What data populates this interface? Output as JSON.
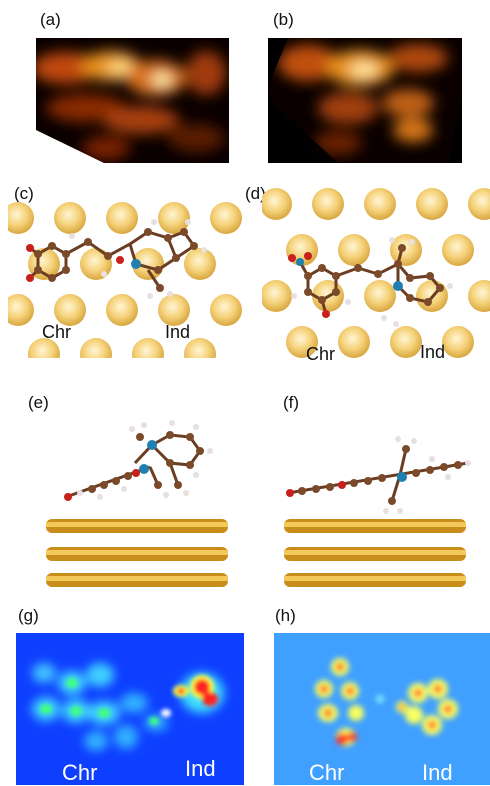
{
  "figure": {
    "panel_labels": [
      "(a)",
      "(b)",
      "(c)",
      "(d)",
      "(e)",
      "(f)",
      "(g)",
      "(h)"
    ],
    "c_labels": {
      "left": "Chr",
      "right": "Ind"
    },
    "d_labels": {
      "left": "Chr",
      "right": "Ind"
    },
    "g_labels": {
      "left": "Chr",
      "right": "Ind"
    },
    "h_labels": {
      "left": "Chr",
      "right": "Ind"
    }
  },
  "colors": {
    "stm_dark": "#0a0000",
    "stm_orange": "#c85a10",
    "stm_bright": "#fff0a0",
    "gold_atom": "#f4cf6e",
    "carbon": "#7a4a2a",
    "oxygen": "#c8201a",
    "nitrogen": "#1f7fb0",
    "hydrogen": "#e8e0e0",
    "map_blue": "#0e3fff",
    "map_light_blue": "#3fa0ff"
  }
}
